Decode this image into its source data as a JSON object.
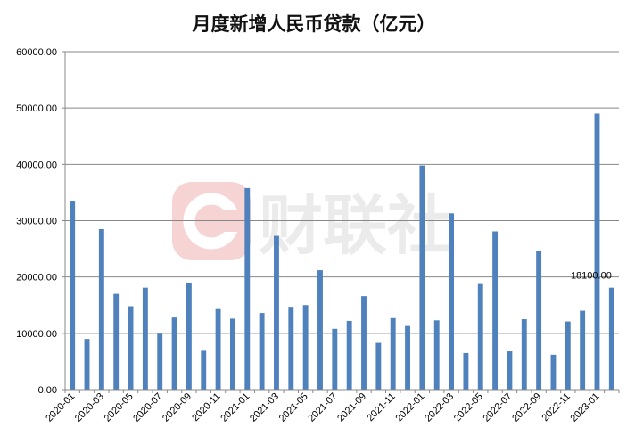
{
  "chart_data": {
    "type": "bar",
    "title": "月度新增人民币贷款（亿元）",
    "xlabel": "",
    "ylabel": "",
    "ylim": [
      0,
      60000
    ],
    "yticks": [
      "0.00",
      "10000.00",
      "20000.00",
      "30000.00",
      "40000.00",
      "50000.00",
      "60000.00"
    ],
    "grid": true,
    "bar_color": "#4f81bd",
    "categories": [
      "2020-01",
      "2020-02",
      "2020-03",
      "2020-04",
      "2020-05",
      "2020-06",
      "2020-07",
      "2020-08",
      "2020-09",
      "2020-10",
      "2020-11",
      "2020-12",
      "2021-01",
      "2021-02",
      "2021-03",
      "2021-04",
      "2021-05",
      "2021-06",
      "2021-07",
      "2021-08",
      "2021-09",
      "2021-10",
      "2021-11",
      "2021-12",
      "2022-01",
      "2022-02",
      "2022-03",
      "2022-04",
      "2022-05",
      "2022-06",
      "2022-07",
      "2022-08",
      "2022-09",
      "2022-10",
      "2022-11",
      "2022-12",
      "2023-01",
      "2023-02"
    ],
    "x_labels_shown": [
      "2020-01",
      "2020-03",
      "2020-05",
      "2020-07",
      "2020-09",
      "2020-11",
      "2021-01",
      "2021-03",
      "2021-05",
      "2021-07",
      "2021-09",
      "2021-11",
      "2022-01",
      "2022-03",
      "2022-05",
      "2022-07",
      "2022-09",
      "2022-11",
      "2023-01"
    ],
    "values": [
      33400,
      9000,
      28500,
      17000,
      14800,
      18100,
      9900,
      12800,
      19000,
      6900,
      14300,
      12600,
      35800,
      13600,
      27300,
      14700,
      15000,
      21200,
      10800,
      12200,
      16600,
      8300,
      12700,
      11300,
      39800,
      12300,
      31300,
      6500,
      18900,
      28100,
      6800,
      12500,
      24700,
      6200,
      12100,
      14000,
      49000,
      18100
    ],
    "data_labels": [
      {
        "category": "2023-02",
        "text": "18100.00"
      }
    ]
  },
  "watermark": {
    "text": "财联社",
    "icon": "cailian-logo-icon",
    "color": "#f4cccc"
  }
}
